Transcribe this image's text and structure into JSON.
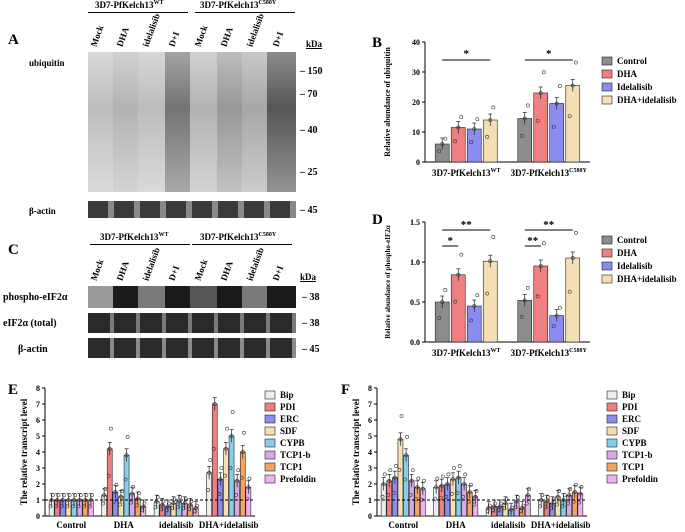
{
  "panels": {
    "A": "A",
    "B": "B",
    "C": "C",
    "D": "D",
    "E": "E",
    "F": "F"
  },
  "panelA": {
    "group_headers": [
      "3D7-PfKelch13",
      "WT",
      "3D7-PfKelch13",
      "C580Y"
    ],
    "lanes": [
      "Mock",
      "DHA",
      "idelalisib",
      "D+I",
      "Mock",
      "DHA",
      "idelalisib",
      "D+I"
    ],
    "kda_label": "kDa",
    "markers": [
      "150",
      "70",
      "40",
      "25",
      "45"
    ],
    "ubiquitin_label": "ubiquitin",
    "actin_label": "β-actin"
  },
  "panelC": {
    "group_headers": [
      "3D7-PfKelch13",
      "WT",
      "3D7-PfKelch13",
      "C580Y"
    ],
    "lanes": [
      "Mock",
      "DHA",
      "idelalisib",
      "D+I",
      "Mock",
      "DHA",
      "idelalisib",
      "D+I"
    ],
    "kda_label": "kDa",
    "rows": [
      {
        "label": "phospho-eIF2α",
        "kda": "38"
      },
      {
        "label": "eIF2α (total)",
        "kda": "38"
      },
      {
        "label": "β-actin",
        "kda": "45"
      }
    ]
  },
  "chart_data": [
    {
      "id": "B",
      "type": "bar",
      "ylabel": "Relative abundance of ubiquitin",
      "ylim": [
        0,
        40
      ],
      "yticks": [
        "0",
        "10",
        "20",
        "30",
        "40"
      ],
      "categories": [
        "3D7-PfKelch13WT",
        "3D7-PfKelch13C580Y"
      ],
      "series": [
        {
          "name": "Control",
          "color": "#8c8c8c",
          "values": [
            6,
            14.5
          ]
        },
        {
          "name": "DHA",
          "color": "#f08080",
          "values": [
            11.5,
            23
          ]
        },
        {
          "name": "Idelalisib",
          "color": "#8b8bf0",
          "values": [
            11,
            19.5
          ]
        },
        {
          "name": "DHA+idelalisib",
          "color": "#f5deb3",
          "values": [
            14,
            25.5
          ]
        }
      ],
      "significance": [
        "*",
        "*"
      ]
    },
    {
      "id": "D",
      "type": "bar",
      "ylabel": "Relative abundance of phospho-eIF2α",
      "ylim": [
        0,
        1.5
      ],
      "yticks": [
        "0.0",
        "0.5",
        "1.0",
        "1.5"
      ],
      "categories": [
        "3D7-PfKelch13WT",
        "3D7-PfKelch13C580Y"
      ],
      "series": [
        {
          "name": "Control",
          "color": "#8c8c8c",
          "values": [
            0.5,
            0.52
          ]
        },
        {
          "name": "DHA",
          "color": "#f08080",
          "values": [
            0.84,
            0.95
          ]
        },
        {
          "name": "Idelalisib",
          "color": "#8b8bf0",
          "values": [
            0.45,
            0.33
          ]
        },
        {
          "name": "DHA+idelalisib",
          "color": "#f5deb3",
          "values": [
            1.01,
            1.05
          ]
        }
      ],
      "significance": [
        "*",
        "**",
        "**",
        "**"
      ]
    },
    {
      "id": "E",
      "type": "bar",
      "ylabel": "The relative transcript level",
      "ylim": [
        0,
        8
      ],
      "yticks": [
        "0",
        "1",
        "2",
        "3",
        "4",
        "5",
        "6",
        "7",
        "8"
      ],
      "categories": [
        "Control",
        "DHA",
        "idelalisib",
        "DHA+idelalisib"
      ],
      "series": [
        {
          "name": "Bip",
          "color": "#eeeeee",
          "values": [
            1,
            1.3,
            0.9,
            2.7
          ]
        },
        {
          "name": "PDI",
          "color": "#f08080",
          "values": [
            1,
            4.2,
            0.7,
            7.0
          ]
        },
        {
          "name": "ERC",
          "color": "#8b8bf0",
          "values": [
            1,
            1.5,
            0.6,
            2.3
          ]
        },
        {
          "name": "SDF",
          "color": "#f5deb3",
          "values": [
            1,
            1.2,
            0.8,
            4.2
          ]
        },
        {
          "name": "CYPB",
          "color": "#87ceeb",
          "values": [
            1,
            3.8,
            0.9,
            5.0
          ]
        },
        {
          "name": "TCP1-b",
          "color": "#d8a8e8",
          "values": [
            1,
            1.4,
            0.8,
            2.2
          ]
        },
        {
          "name": "TCP1",
          "color": "#f4a460",
          "values": [
            1,
            1.1,
            0.7,
            4.0
          ]
        },
        {
          "name": "Prefoldin",
          "color": "#f0b0f0",
          "values": [
            1,
            0.6,
            0.5,
            1.8
          ]
        }
      ]
    },
    {
      "id": "F",
      "type": "bar",
      "ylabel": "The relative transcript level",
      "ylim": [
        0,
        8
      ],
      "yticks": [
        "0",
        "1",
        "2",
        "3",
        "4",
        "5",
        "6",
        "7",
        "8"
      ],
      "categories": [
        "Control",
        "DHA",
        "idelalisib",
        "DHA+idelalisib"
      ],
      "series": [
        {
          "name": "Bip",
          "color": "#eeeeee",
          "values": [
            2.0,
            1.8,
            0.5,
            1.0
          ]
        },
        {
          "name": "PDI",
          "color": "#f08080",
          "values": [
            2.2,
            1.9,
            0.6,
            0.9
          ]
        },
        {
          "name": "ERC",
          "color": "#8b8bf0",
          "values": [
            2.4,
            2.0,
            0.6,
            0.8
          ]
        },
        {
          "name": "SDF",
          "color": "#f5deb3",
          "values": [
            4.8,
            2.3,
            0.8,
            1.2
          ]
        },
        {
          "name": "CYPB",
          "color": "#87ceeb",
          "values": [
            3.8,
            2.4,
            0.4,
            1.0
          ]
        },
        {
          "name": "TCP1-b",
          "color": "#d8a8e8",
          "values": [
            2.2,
            2.0,
            0.9,
            1.3
          ]
        },
        {
          "name": "TCP1",
          "color": "#f4a460",
          "values": [
            1.8,
            1.5,
            0.5,
            1.5
          ]
        },
        {
          "name": "Prefoldin",
          "color": "#f0b0f0",
          "values": [
            1.7,
            1.2,
            1.3,
            1.4
          ]
        }
      ]
    }
  ]
}
